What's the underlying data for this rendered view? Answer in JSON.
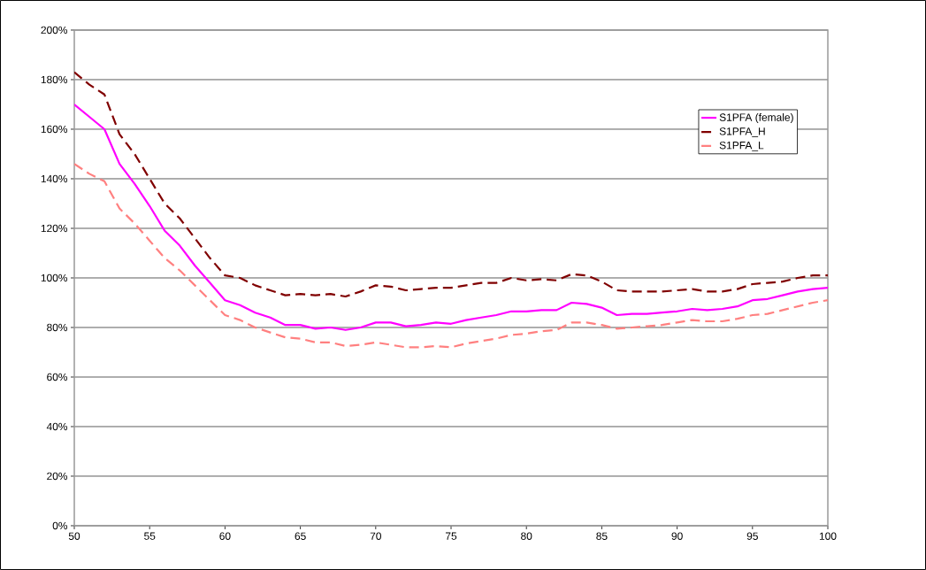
{
  "chart_data": {
    "type": "line",
    "x": [
      50,
      51,
      52,
      53,
      54,
      55,
      56,
      57,
      58,
      59,
      60,
      61,
      62,
      63,
      64,
      65,
      66,
      67,
      68,
      69,
      70,
      71,
      72,
      73,
      74,
      75,
      76,
      77,
      78,
      79,
      80,
      81,
      82,
      83,
      84,
      85,
      86,
      87,
      88,
      89,
      90,
      91,
      92,
      93,
      94,
      95,
      96,
      97,
      98,
      99,
      100
    ],
    "xlim": [
      50,
      100
    ],
    "xticks": [
      50,
      55,
      60,
      65,
      70,
      75,
      80,
      85,
      90,
      95,
      100
    ],
    "ylim": [
      0,
      200
    ],
    "yticks": [
      {
        "value": 0,
        "label": "0%"
      },
      {
        "value": 20,
        "label": "20%"
      },
      {
        "value": 40,
        "label": "40%"
      },
      {
        "value": 60,
        "label": "60%"
      },
      {
        "value": 80,
        "label": "80%"
      },
      {
        "value": 100,
        "label": "100%"
      },
      {
        "value": 120,
        "label": "120%"
      },
      {
        "value": 140,
        "label": "140%"
      },
      {
        "value": 160,
        "label": "160%"
      },
      {
        "value": 180,
        "label": "180%"
      },
      {
        "value": 200,
        "label": "200%"
      }
    ],
    "grid": "y",
    "legend": "top right",
    "marker": "none",
    "series": [
      {
        "name": "S1PFA (female)",
        "color": "#ff00ff",
        "line_style": "solid",
        "values": [
          170,
          165,
          160,
          146,
          138,
          129,
          119,
          113,
          105,
          98,
          91,
          89,
          86,
          84,
          81,
          81,
          79.5,
          80,
          79,
          80,
          82,
          82,
          80.5,
          81,
          82,
          81.5,
          83,
          84,
          85,
          86.5,
          86.5,
          87,
          87,
          90,
          89.5,
          88,
          85,
          85.5,
          85.5,
          86,
          86.5,
          87.5,
          87,
          87.5,
          88.5,
          91,
          91.5,
          93,
          94.5,
          95.5,
          96
        ]
      },
      {
        "name": "S1PFA_H",
        "color": "#800000",
        "line_style": "dashed",
        "values": [
          183,
          178,
          174,
          158,
          150,
          140,
          130,
          124,
          116,
          108,
          101,
          100,
          97,
          95,
          93,
          93.5,
          93,
          93.5,
          92.5,
          94.5,
          97,
          96.5,
          95,
          95.5,
          96,
          96,
          97,
          98,
          98,
          100,
          99,
          99.5,
          99,
          101.5,
          101,
          98.5,
          95,
          94.5,
          94.5,
          94.5,
          95,
          95.5,
          94.5,
          94.5,
          95.5,
          97.5,
          98,
          98.5,
          100,
          101,
          101
        ]
      },
      {
        "name": "S1PFA_L",
        "color": "#ff8080",
        "line_style": "dashed",
        "values": [
          146,
          142,
          139,
          128,
          122,
          115,
          108,
          103,
          97,
          91,
          85,
          83,
          80,
          78,
          76,
          75.5,
          74,
          74,
          72.5,
          73,
          74,
          73,
          72,
          72,
          72.5,
          72,
          73.5,
          74.5,
          75.5,
          77,
          77.5,
          78.5,
          79,
          82,
          82,
          81,
          79.5,
          80,
          80.5,
          81,
          82,
          83,
          82.5,
          82.5,
          83.5,
          85,
          85.5,
          87,
          88.5,
          90,
          91
        ]
      }
    ]
  }
}
